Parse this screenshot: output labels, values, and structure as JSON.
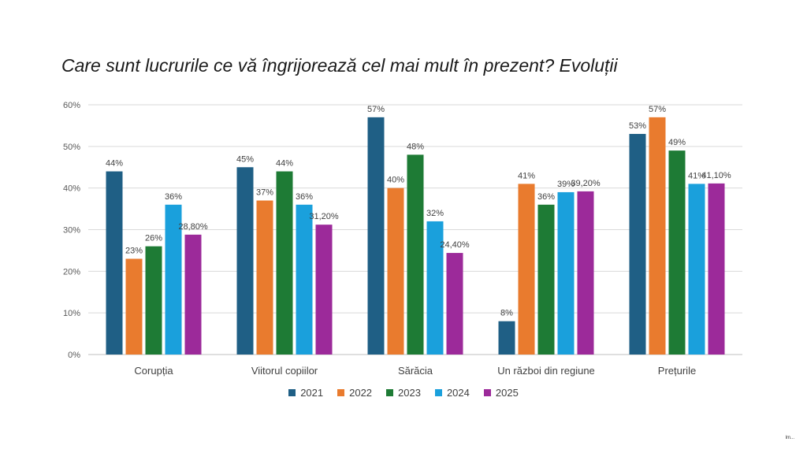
{
  "slide": {
    "title": "Care sunt lucrurile ce vă îngrijorează cel mai mult în prezent? Evoluții",
    "watermark": "lm..."
  },
  "chart_data": {
    "type": "bar",
    "title": "Care sunt lucrurile ce vă îngrijorează cel mai mult în prezent? Evoluții",
    "categories": [
      "Corupția",
      "Viitorul copiilor",
      "Sărăcia",
      "Un război din regiune",
      "Prețurile"
    ],
    "ylim": [
      0,
      60
    ],
    "yticks": [
      "0%",
      "10%",
      "20%",
      "30%",
      "40%",
      "50%",
      "60%"
    ],
    "ytick_values": [
      0,
      10,
      20,
      30,
      40,
      50,
      60
    ],
    "grid": true,
    "legend_position": "bottom",
    "series": [
      {
        "name": "2021",
        "color": "#1f5f85",
        "values": [
          44,
          45,
          57,
          8,
          53
        ],
        "labels": [
          "44%",
          "45%",
          "57%",
          "8%",
          "53%"
        ]
      },
      {
        "name": "2022",
        "color": "#e97b2e",
        "values": [
          23,
          37,
          40,
          41,
          57
        ],
        "labels": [
          "23%",
          "37%",
          "40%",
          "41%",
          "57%"
        ]
      },
      {
        "name": "2023",
        "color": "#1e7b35",
        "values": [
          26,
          44,
          48,
          36,
          49
        ],
        "labels": [
          "26%",
          "44%",
          "48%",
          "36%",
          "49%"
        ]
      },
      {
        "name": "2024",
        "color": "#1aa0dc",
        "values": [
          36,
          36,
          32,
          39,
          41
        ],
        "labels": [
          "36%",
          "36%",
          "32%",
          "39%",
          "41%"
        ]
      },
      {
        "name": "2025",
        "color": "#9c2a9a",
        "values": [
          28.8,
          31.2,
          24.4,
          39.2,
          41.1
        ],
        "labels": [
          "28,80%",
          "31,20%",
          "24,40%",
          "39,20%",
          "41,10%"
        ]
      }
    ]
  }
}
